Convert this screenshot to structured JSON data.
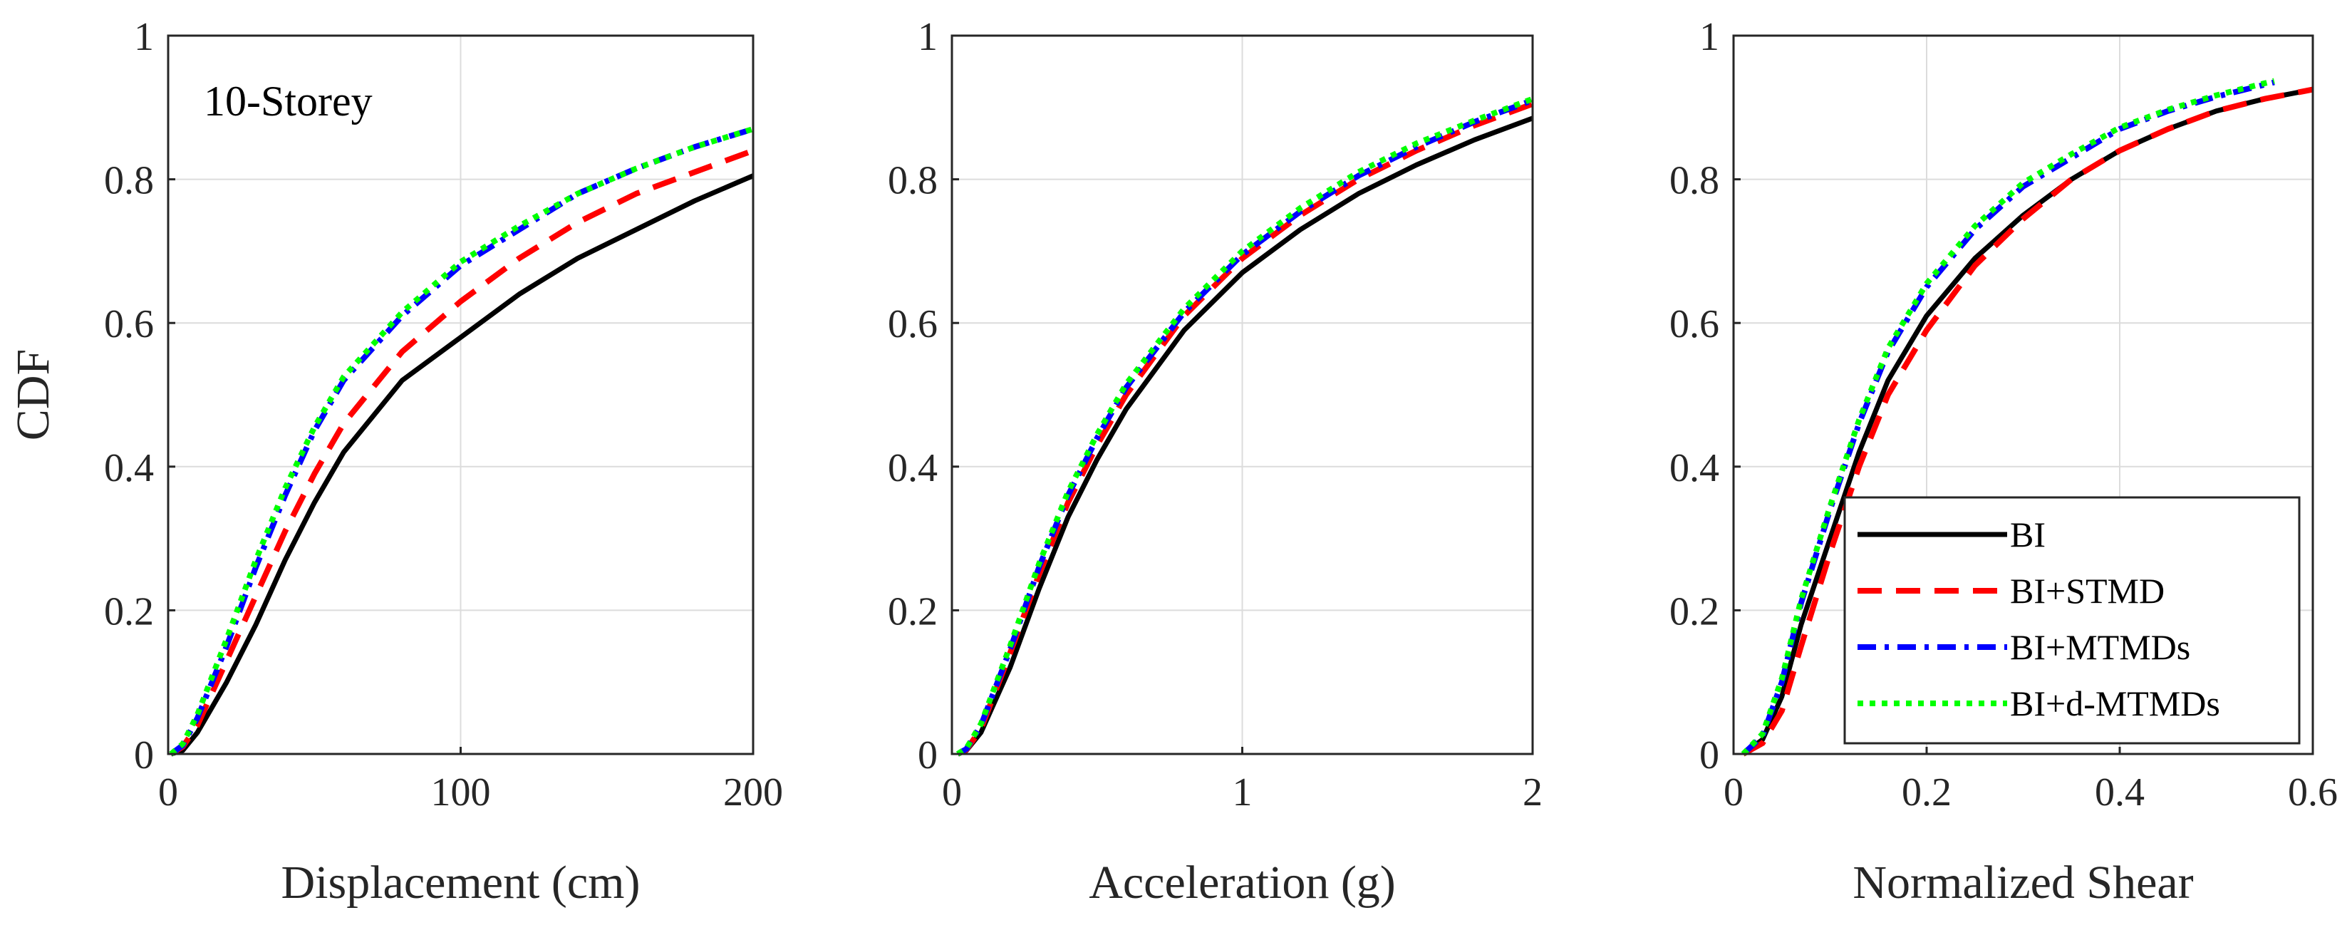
{
  "chart_data": [
    {
      "type": "line",
      "title": "",
      "xlabel": "Displacement (cm)",
      "ylabel": "CDF",
      "annotation": "10-Storey",
      "xlim": [
        0,
        200
      ],
      "ylim": [
        0,
        1
      ],
      "xticks": [
        0,
        100,
        200
      ],
      "xtick_labels": [
        "0",
        "100",
        "200"
      ],
      "yticks": [
        0,
        0.2,
        0.4,
        0.6,
        0.8,
        1
      ],
      "ytick_labels": [
        "0",
        "0.2",
        "0.4",
        "0.6",
        "0.8",
        "1"
      ],
      "grid": true,
      "series": [
        {
          "name": "BI",
          "x": [
            1,
            5,
            10,
            20,
            30,
            40,
            50,
            60,
            80,
            100,
            120,
            140,
            160,
            180,
            200
          ],
          "y": [
            0,
            0.005,
            0.03,
            0.1,
            0.18,
            0.27,
            0.35,
            0.42,
            0.52,
            0.58,
            0.64,
            0.69,
            0.73,
            0.77,
            0.805
          ]
        },
        {
          "name": "BI+STMD",
          "x": [
            1,
            5,
            10,
            20,
            30,
            40,
            50,
            60,
            80,
            100,
            120,
            140,
            160,
            180,
            200
          ],
          "y": [
            0,
            0.01,
            0.04,
            0.13,
            0.22,
            0.31,
            0.39,
            0.46,
            0.56,
            0.63,
            0.69,
            0.74,
            0.78,
            0.81,
            0.84
          ]
        },
        {
          "name": "BI+MTMDs",
          "x": [
            1,
            5,
            10,
            20,
            30,
            40,
            50,
            60,
            80,
            100,
            120,
            140,
            160,
            180,
            200
          ],
          "y": [
            0,
            0.012,
            0.05,
            0.15,
            0.26,
            0.36,
            0.45,
            0.52,
            0.61,
            0.68,
            0.73,
            0.78,
            0.815,
            0.845,
            0.87
          ]
        },
        {
          "name": "BI+d-MTMDs",
          "x": [
            1,
            5,
            10,
            20,
            30,
            40,
            50,
            60,
            80,
            100,
            120,
            140,
            160,
            180,
            200
          ],
          "y": [
            0,
            0.014,
            0.055,
            0.16,
            0.27,
            0.37,
            0.455,
            0.525,
            0.615,
            0.685,
            0.735,
            0.78,
            0.815,
            0.845,
            0.87
          ]
        }
      ]
    },
    {
      "type": "line",
      "title": "",
      "xlabel": "Acceleration (g)",
      "ylabel": "",
      "xlim": [
        0,
        2
      ],
      "ylim": [
        0,
        1
      ],
      "xticks": [
        0,
        1,
        2
      ],
      "xtick_labels": [
        "0",
        "1",
        "2"
      ],
      "yticks": [
        0,
        0.2,
        0.4,
        0.6,
        0.8,
        1
      ],
      "ytick_labels": [
        "0",
        "0.2",
        "0.4",
        "0.6",
        "0.8",
        "1"
      ],
      "grid": true,
      "series": [
        {
          "name": "BI",
          "x": [
            0.02,
            0.05,
            0.1,
            0.2,
            0.3,
            0.4,
            0.5,
            0.6,
            0.8,
            1.0,
            1.2,
            1.4,
            1.6,
            1.8,
            2.0
          ],
          "y": [
            0,
            0.005,
            0.03,
            0.12,
            0.23,
            0.33,
            0.41,
            0.48,
            0.59,
            0.67,
            0.73,
            0.78,
            0.82,
            0.855,
            0.885
          ]
        },
        {
          "name": "BI+STMD",
          "x": [
            0.02,
            0.05,
            0.1,
            0.2,
            0.3,
            0.4,
            0.5,
            0.6,
            0.8,
            1.0,
            1.2,
            1.4,
            1.6,
            1.8,
            2.0
          ],
          "y": [
            0,
            0.006,
            0.035,
            0.14,
            0.25,
            0.35,
            0.43,
            0.5,
            0.61,
            0.69,
            0.75,
            0.8,
            0.84,
            0.875,
            0.905
          ]
        },
        {
          "name": "BI+MTMDs",
          "x": [
            0.02,
            0.05,
            0.1,
            0.2,
            0.3,
            0.4,
            0.5,
            0.6,
            0.8,
            1.0,
            1.2,
            1.4,
            1.6,
            1.8,
            2.0
          ],
          "y": [
            0,
            0.007,
            0.04,
            0.145,
            0.26,
            0.36,
            0.44,
            0.51,
            0.615,
            0.695,
            0.755,
            0.805,
            0.845,
            0.88,
            0.91
          ]
        },
        {
          "name": "BI+d-MTMDs",
          "x": [
            0.02,
            0.05,
            0.1,
            0.2,
            0.3,
            0.4,
            0.5,
            0.6,
            0.8,
            1.0,
            1.2,
            1.4,
            1.6,
            1.8,
            2.0
          ],
          "y": [
            0,
            0.008,
            0.042,
            0.15,
            0.265,
            0.365,
            0.445,
            0.515,
            0.62,
            0.7,
            0.76,
            0.81,
            0.85,
            0.882,
            0.912
          ]
        }
      ]
    },
    {
      "type": "line",
      "title": "",
      "xlabel": "Normalized Shear",
      "ylabel": "",
      "xlim": [
        0,
        0.6
      ],
      "ylim": [
        0,
        1
      ],
      "xticks": [
        0,
        0.2,
        0.4,
        0.6
      ],
      "xtick_labels": [
        "0",
        "0.2",
        "0.4",
        "0.6"
      ],
      "yticks": [
        0,
        0.2,
        0.4,
        0.6,
        0.8,
        1
      ],
      "ytick_labels": [
        "0",
        "0.2",
        "0.4",
        "0.6",
        "0.8",
        "1"
      ],
      "grid": true,
      "legend": {
        "location": "bottom-right",
        "entries": [
          "BI",
          "BI+STMD",
          "BI+MTMDs",
          "BI+d-MTMDs"
        ]
      },
      "series": [
        {
          "name": "BI",
          "x": [
            0.01,
            0.03,
            0.05,
            0.07,
            0.1,
            0.13,
            0.16,
            0.2,
            0.25,
            0.3,
            0.35,
            0.4,
            0.45,
            0.5,
            0.55,
            0.6
          ],
          "y": [
            0,
            0.02,
            0.08,
            0.18,
            0.3,
            0.42,
            0.52,
            0.61,
            0.69,
            0.75,
            0.8,
            0.84,
            0.87,
            0.895,
            0.912,
            0.925
          ]
        },
        {
          "name": "BI+STMD",
          "x": [
            0.01,
            0.03,
            0.05,
            0.07,
            0.1,
            0.13,
            0.16,
            0.2,
            0.25,
            0.3,
            0.35,
            0.4,
            0.45,
            0.5,
            0.55,
            0.6
          ],
          "y": [
            0,
            0.015,
            0.06,
            0.15,
            0.28,
            0.4,
            0.5,
            0.59,
            0.68,
            0.745,
            0.8,
            0.84,
            0.87,
            0.895,
            0.912,
            0.925
          ]
        },
        {
          "name": "BI+MTMDs",
          "x": [
            0.01,
            0.03,
            0.05,
            0.07,
            0.1,
            0.13,
            0.16,
            0.2,
            0.25,
            0.3,
            0.35,
            0.4,
            0.45,
            0.5,
            0.56
          ],
          "y": [
            0,
            0.025,
            0.1,
            0.21,
            0.34,
            0.46,
            0.56,
            0.65,
            0.73,
            0.79,
            0.83,
            0.87,
            0.895,
            0.915,
            0.935
          ]
        },
        {
          "name": "BI+d-MTMDs",
          "x": [
            0.01,
            0.03,
            0.05,
            0.07,
            0.1,
            0.13,
            0.16,
            0.2,
            0.25,
            0.3,
            0.35,
            0.4,
            0.45,
            0.5,
            0.56
          ],
          "y": [
            0,
            0.028,
            0.105,
            0.215,
            0.345,
            0.465,
            0.565,
            0.655,
            0.735,
            0.795,
            0.835,
            0.872,
            0.897,
            0.917,
            0.937
          ]
        }
      ]
    }
  ],
  "series_colors": {
    "BI": "#000000",
    "BI+STMD": "#ff0000",
    "BI+MTMDs": "#0000ff",
    "BI+d-MTMDs": "#00ff00"
  },
  "series_dash": {
    "BI": "solid",
    "BI+STMD": "dashed",
    "BI+MTMDs": "dash-dot",
    "BI+d-MTMDs": "dotted"
  }
}
